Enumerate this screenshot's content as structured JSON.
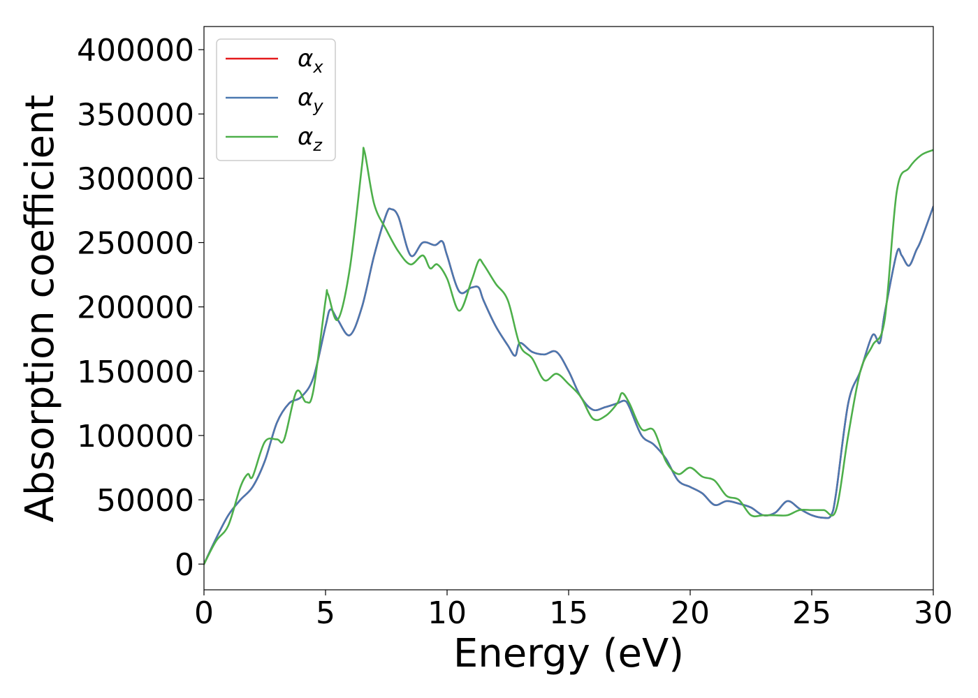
{
  "chart_data": {
    "type": "line",
    "title": "",
    "xlabel": "Energy (eV)",
    "ylabel": "Absorption coefficient",
    "xlim": [
      0,
      30
    ],
    "ylim": [
      -20000,
      418000
    ],
    "xticks": [
      0,
      5,
      10,
      15,
      20,
      25,
      30
    ],
    "yticks": [
      0,
      50000,
      100000,
      150000,
      200000,
      250000,
      300000,
      350000,
      400000
    ],
    "grid": false,
    "legend_position": "top-left",
    "series": [
      {
        "name": "αx",
        "name_base": "α",
        "name_sub": "x",
        "color": "#e41a1c",
        "x": [
          0,
          0.5,
          1,
          1.5,
          2,
          2.5,
          3,
          3.5,
          4,
          4.5,
          5,
          5.2,
          5.5,
          6,
          6.5,
          7,
          7.5,
          7.7,
          8,
          8.5,
          9,
          9.5,
          9.8,
          10,
          10.5,
          11,
          11.3,
          11.5,
          12,
          12.5,
          12.8,
          13,
          13.5,
          14,
          14.5,
          15,
          15.5,
          16,
          16.5,
          17,
          17.3,
          17.5,
          18,
          18.5,
          19,
          19.5,
          20,
          20.5,
          21,
          21.5,
          22,
          22.5,
          23,
          23.5,
          24,
          24.5,
          25,
          25.5,
          25.8,
          26,
          26.5,
          27,
          27.5,
          27.8,
          28,
          28.5,
          28.7,
          29,
          29.3,
          29.5,
          30
        ],
        "y": [
          0,
          20000,
          38000,
          50000,
          60000,
          80000,
          110000,
          125000,
          130000,
          145000,
          185000,
          198000,
          190000,
          178000,
          200000,
          240000,
          272000,
          276000,
          270000,
          240000,
          250000,
          248000,
          251000,
          240000,
          212000,
          215000,
          215000,
          205000,
          185000,
          170000,
          162000,
          172000,
          165000,
          163000,
          165000,
          150000,
          130000,
          120000,
          122000,
          125000,
          127000,
          122000,
          100000,
          93000,
          82000,
          65000,
          60000,
          55000,
          46000,
          49000,
          47000,
          44000,
          38000,
          40000,
          49000,
          43000,
          38000,
          36000,
          38000,
          55000,
          125000,
          150000,
          178000,
          172000,
          195000,
          242000,
          240000,
          232000,
          244000,
          252000,
          278000
        ]
      },
      {
        "name": "αy",
        "name_base": "α",
        "name_sub": "y",
        "color": "#4a78b0",
        "x": [
          0,
          0.5,
          1,
          1.5,
          2,
          2.5,
          3,
          3.5,
          4,
          4.5,
          5,
          5.2,
          5.5,
          6,
          6.5,
          7,
          7.5,
          7.7,
          8,
          8.5,
          9,
          9.5,
          9.8,
          10,
          10.5,
          11,
          11.3,
          11.5,
          12,
          12.5,
          12.8,
          13,
          13.5,
          14,
          14.5,
          15,
          15.5,
          16,
          16.5,
          17,
          17.3,
          17.5,
          18,
          18.5,
          19,
          19.5,
          20,
          20.5,
          21,
          21.5,
          22,
          22.5,
          23,
          23.5,
          24,
          24.5,
          25,
          25.5,
          25.8,
          26,
          26.5,
          27,
          27.5,
          27.8,
          28,
          28.5,
          28.7,
          29,
          29.3,
          29.5,
          30
        ],
        "y": [
          0,
          20000,
          38000,
          50000,
          60000,
          80000,
          110000,
          125000,
          130000,
          145000,
          185000,
          198000,
          190000,
          178000,
          200000,
          240000,
          272000,
          276000,
          270000,
          240000,
          250000,
          248000,
          251000,
          240000,
          212000,
          215000,
          215000,
          205000,
          185000,
          170000,
          162000,
          172000,
          165000,
          163000,
          165000,
          150000,
          130000,
          120000,
          122000,
          125000,
          127000,
          122000,
          100000,
          93000,
          82000,
          65000,
          60000,
          55000,
          46000,
          49000,
          47000,
          44000,
          38000,
          40000,
          49000,
          43000,
          38000,
          36000,
          38000,
          55000,
          125000,
          150000,
          178000,
          172000,
          195000,
          242000,
          240000,
          232000,
          244000,
          252000,
          278000
        ]
      },
      {
        "name": "αz",
        "name_base": "α",
        "name_sub": "z",
        "color": "#4daf4a",
        "x": [
          0,
          0.5,
          1,
          1.5,
          1.8,
          2,
          2.5,
          3,
          3.3,
          3.8,
          4.2,
          4.5,
          5,
          5.1,
          5.5,
          6,
          6.5,
          6.6,
          7,
          7.5,
          8,
          8.5,
          9,
          9.3,
          9.6,
          10,
          10.5,
          11,
          11.3,
          11.5,
          12,
          12.5,
          13,
          13.5,
          14,
          14.5,
          15,
          15.5,
          16,
          16.5,
          17,
          17.2,
          17.5,
          18,
          18.5,
          19,
          19.5,
          20,
          20.5,
          21,
          21.5,
          22,
          22.5,
          23,
          23.5,
          24,
          24.5,
          25,
          25.5,
          26,
          26.5,
          27,
          27.5,
          28,
          28.5,
          29,
          29.5,
          30
        ],
        "y": [
          0,
          18000,
          30000,
          60000,
          70000,
          68000,
          95000,
          97000,
          97000,
          134000,
          126000,
          135000,
          205000,
          210000,
          190000,
          230000,
          310000,
          321000,
          280000,
          260000,
          243000,
          233000,
          240000,
          230000,
          233000,
          222000,
          197000,
          220000,
          236000,
          233000,
          218000,
          205000,
          170000,
          160000,
          143000,
          148000,
          140000,
          130000,
          113000,
          115000,
          125000,
          133000,
          125000,
          105000,
          104000,
          80000,
          70000,
          75000,
          68000,
          65000,
          53000,
          50000,
          38000,
          38000,
          38000,
          38000,
          42000,
          42000,
          42000,
          42000,
          100000,
          150000,
          170000,
          190000,
          290000,
          308000,
          318000,
          322000
        ]
      }
    ]
  }
}
